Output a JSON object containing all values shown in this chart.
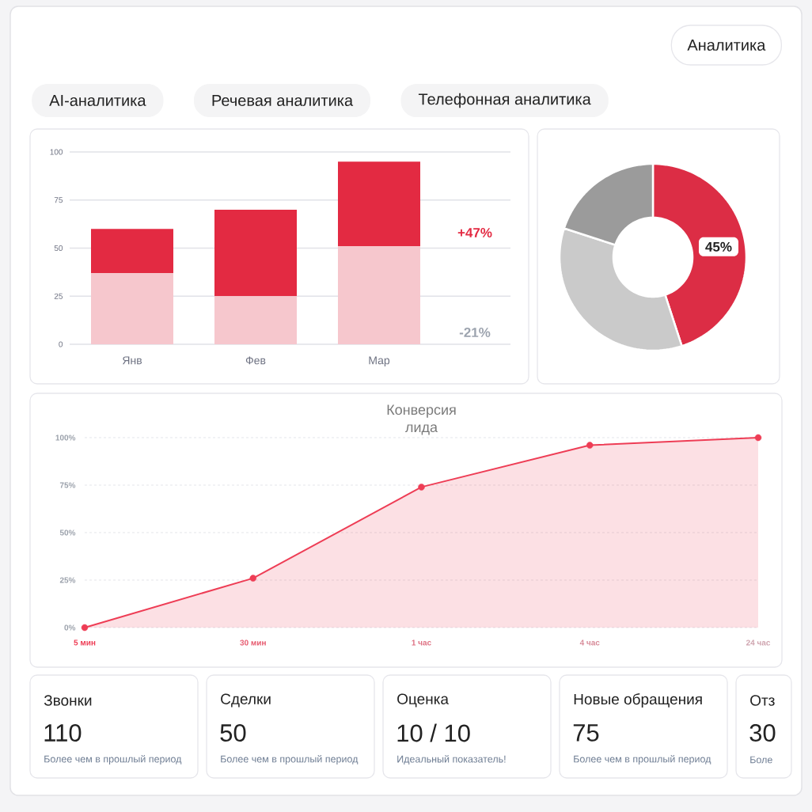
{
  "chart_data": [
    {
      "type": "other",
      "annotations": [
        "Аналитика",
        "AI-аналитика",
        "Речевая аналитика",
        "Телефонная аналитика"
      ]
    },
    {
      "type": "bar",
      "stacked": true,
      "categories": [
        "Янв",
        "Фев",
        "Мар"
      ],
      "series": [
        {
          "color": "#f6c7cd",
          "values": [
            37,
            25,
            51
          ]
        },
        {
          "color": "#e32a42",
          "values": [
            23,
            45,
            44
          ]
        }
      ],
      "ylim": [
        0,
        100
      ],
      "yticks": [
        0,
        25,
        50,
        75,
        100
      ],
      "grid": "y",
      "annotations": [
        "+47%",
        "-21%"
      ]
    },
    {
      "type": "donut",
      "categories": [
        null,
        null,
        null
      ],
      "values": [
        45,
        35,
        20
      ],
      "colors": [
        "#dc2d45",
        "#cacaca",
        "#9b9b9b"
      ],
      "value_labels": [
        "45%",
        null,
        null
      ]
    },
    {
      "type": "area",
      "title": "Конверсия лида",
      "categories": [
        "5 мин",
        "30 мин",
        "1 час",
        "4 час",
        "24 час"
      ],
      "series": [
        {
          "color": "#ee3d55",
          "values": [
            0,
            26,
            74,
            96,
            100
          ]
        }
      ],
      "ylim": [
        0,
        100
      ],
      "yticks": [
        {
          "value": 0,
          "label": "0%"
        },
        {
          "value": 25,
          "label": "25%"
        },
        {
          "value": 50,
          "label": "50%"
        },
        {
          "value": 75,
          "label": "75%"
        },
        {
          "value": 100,
          "label": "100%"
        }
      ],
      "grid": "y",
      "marker": "circle"
    },
    {
      "type": "other",
      "title": "Звонки",
      "annotations": [
        "110",
        "Более чем в прошлый период"
      ]
    },
    {
      "type": "other",
      "title": "Сделки",
      "annotations": [
        "50",
        "Более чем в прошлый период"
      ]
    },
    {
      "type": "other",
      "title": "Оценка",
      "annotations": [
        "10 / 10",
        "Идеальный показатель!"
      ]
    },
    {
      "type": "other",
      "title": "Новые обращения",
      "annotations": [
        "75",
        "Более чем в прошлый период"
      ]
    },
    {
      "type": "other",
      "title": "Отз",
      "annotations": [
        "30",
        "Боле"
      ]
    }
  ]
}
